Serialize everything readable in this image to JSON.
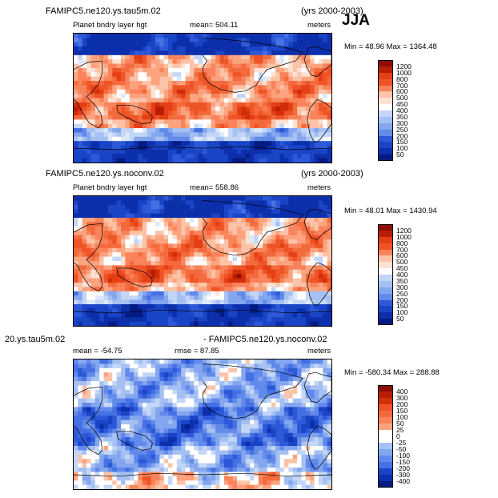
{
  "season": "JJA",
  "colors": {
    "pos": [
      "#fde2d3",
      "#fcc3a8",
      "#fba37f",
      "#f9835a",
      "#f46a3c",
      "#ee5426",
      "#e43f15",
      "#d22e0a",
      "#b81d06",
      "#8e0d04"
    ],
    "neg": [
      "#dce8fb",
      "#c3d6f6",
      "#a5c0f2",
      "#84a6ee",
      "#628aea",
      "#4571e4",
      "#2d58d8",
      "#1a44c6",
      "#0c2fab",
      "#051b82"
    ],
    "white": "#ffffff",
    "land": "#000000"
  },
  "panels": [
    {
      "case_title": "FAMIPC5.ne120.ys.tau5m.02",
      "years": "(yrs 2000-2003)",
      "var_label": "Planet bndry layer hgt",
      "mean_text": "mean= 504.11",
      "units": "meters",
      "range_text": "Min =  48.96  Max = 1364.48"
    },
    {
      "case_title": "FAMIPC5.ne120.ys.noconv.02",
      "years": "(yrs 2000-2003)",
      "var_label": "Planet bndry layer hgt",
      "mean_text": "mean= 558.86",
      "units": "meters",
      "range_text": "Min =  48.01  Max = 1430.94"
    },
    {
      "case_left": "20.ys.tau5m.02",
      "case_right": "- FAMIPC5.ne120.ys.noconv.02",
      "mean_text": "mean = -54.75",
      "rmse_text": "rmse =  87.85",
      "units": "meters",
      "range_text": "Min = -580.34  Max = 288.88"
    }
  ],
  "chart_data": [
    {
      "type": "heatmap",
      "title": "FAMIPC5.ne120.ys.tau5m.02",
      "subtitle": "Planet bndry layer hgt",
      "mean": 504.11,
      "min": 48.96,
      "max": 1364.48,
      "units": "meters",
      "colorbar_levels": [
        50,
        100,
        150,
        200,
        250,
        300,
        350,
        400,
        450,
        500,
        600,
        700,
        800,
        1000,
        1200
      ]
    },
    {
      "type": "heatmap",
      "title": "FAMIPC5.ne120.ys.noconv.02",
      "subtitle": "Planet bndry layer hgt",
      "mean": 558.86,
      "min": 48.01,
      "max": 1430.94,
      "units": "meters",
      "colorbar_levels": [
        50,
        100,
        150,
        200,
        250,
        300,
        350,
        400,
        450,
        500,
        600,
        700,
        800,
        1000,
        1200
      ]
    },
    {
      "type": "heatmap",
      "title": "20.ys.tau5m.02 - FAMIPC5.ne120.ys.noconv.02",
      "mean": -54.75,
      "rmse": 87.85,
      "min": -580.34,
      "max": 288.88,
      "units": "meters",
      "colorbar_levels": [
        -400,
        -300,
        -200,
        -150,
        -100,
        -50,
        -25,
        0,
        25,
        50,
        100,
        150,
        200,
        300,
        400
      ]
    }
  ]
}
